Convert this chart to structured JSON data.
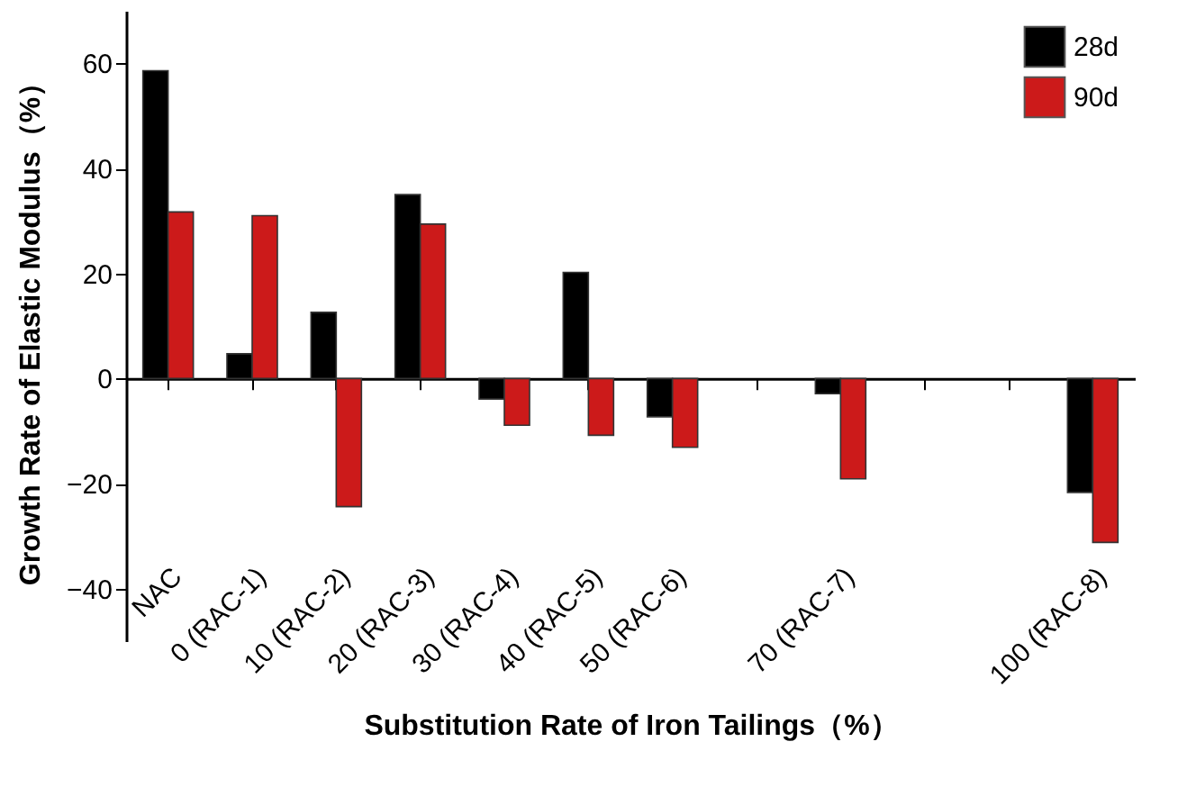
{
  "chart_data": {
    "type": "bar",
    "xlabel": "Substitution Rate of Iron Tailings（%）",
    "ylabel": "Growth Rate of Elastic Modulus（%）",
    "categories": [
      "NAC",
      "0 (RAC-1)",
      "10 (RAC-2)",
      "20 (RAC-3)",
      "30 (RAC-4)",
      "40 (RAC-5)",
      "50 (RAC-6)",
      null,
      "70 (RAC-7)",
      null,
      null,
      "100 (RAC-8)"
    ],
    "series": [
      {
        "name": "28d",
        "color": "#000000",
        "values": [
          58.6,
          4.7,
          12.6,
          35.0,
          -3.9,
          20.2,
          -7.3,
          null,
          -2.9,
          null,
          null,
          -21.7
        ]
      },
      {
        "name": "90d",
        "color": "#cc1a1a",
        "values": [
          31.7,
          31.0,
          -24.4,
          29.4,
          -8.9,
          -10.8,
          -13.1,
          null,
          -19.1,
          null,
          null,
          -31.2
        ]
      }
    ],
    "ylim": [
      -50,
      70
    ],
    "yticks": [
      -40,
      -20,
      0,
      20,
      40,
      60
    ],
    "legend": "top right"
  }
}
